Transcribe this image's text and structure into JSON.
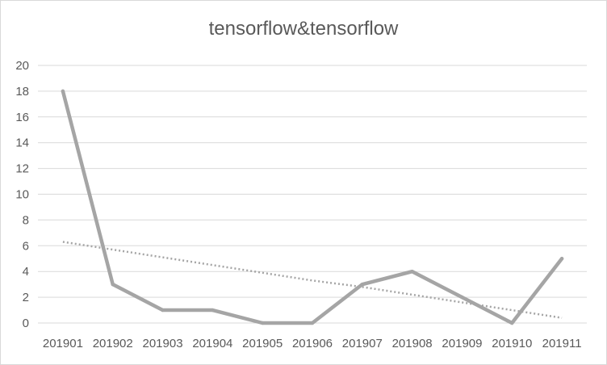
{
  "chart_data": {
    "type": "line",
    "title": "tensorflow&tensorflow",
    "xlabel": "",
    "ylabel": "",
    "categories": [
      "201901",
      "201902",
      "201903",
      "201904",
      "201905",
      "201906",
      "201907",
      "201908",
      "201909",
      "201910",
      "201911"
    ],
    "series": [
      {
        "values": [
          18,
          3,
          1,
          1,
          0,
          0,
          3,
          4,
          2,
          0,
          5
        ],
        "color": "#a5a5a5",
        "style": "solid"
      },
      {
        "values": [
          6.3,
          5.7,
          5.1,
          4.5,
          3.9,
          3.3,
          2.8,
          2.2,
          1.6,
          1.0,
          0.4
        ],
        "color": "#a5a5a5",
        "style": "dotted",
        "kind": "linear-trendline"
      }
    ],
    "yticks": [
      0,
      2,
      4,
      6,
      8,
      10,
      12,
      14,
      16,
      18,
      20
    ],
    "ylim": [
      0,
      20
    ],
    "grid": true,
    "legend": "none",
    "gridColor": "#d9d9d9"
  }
}
